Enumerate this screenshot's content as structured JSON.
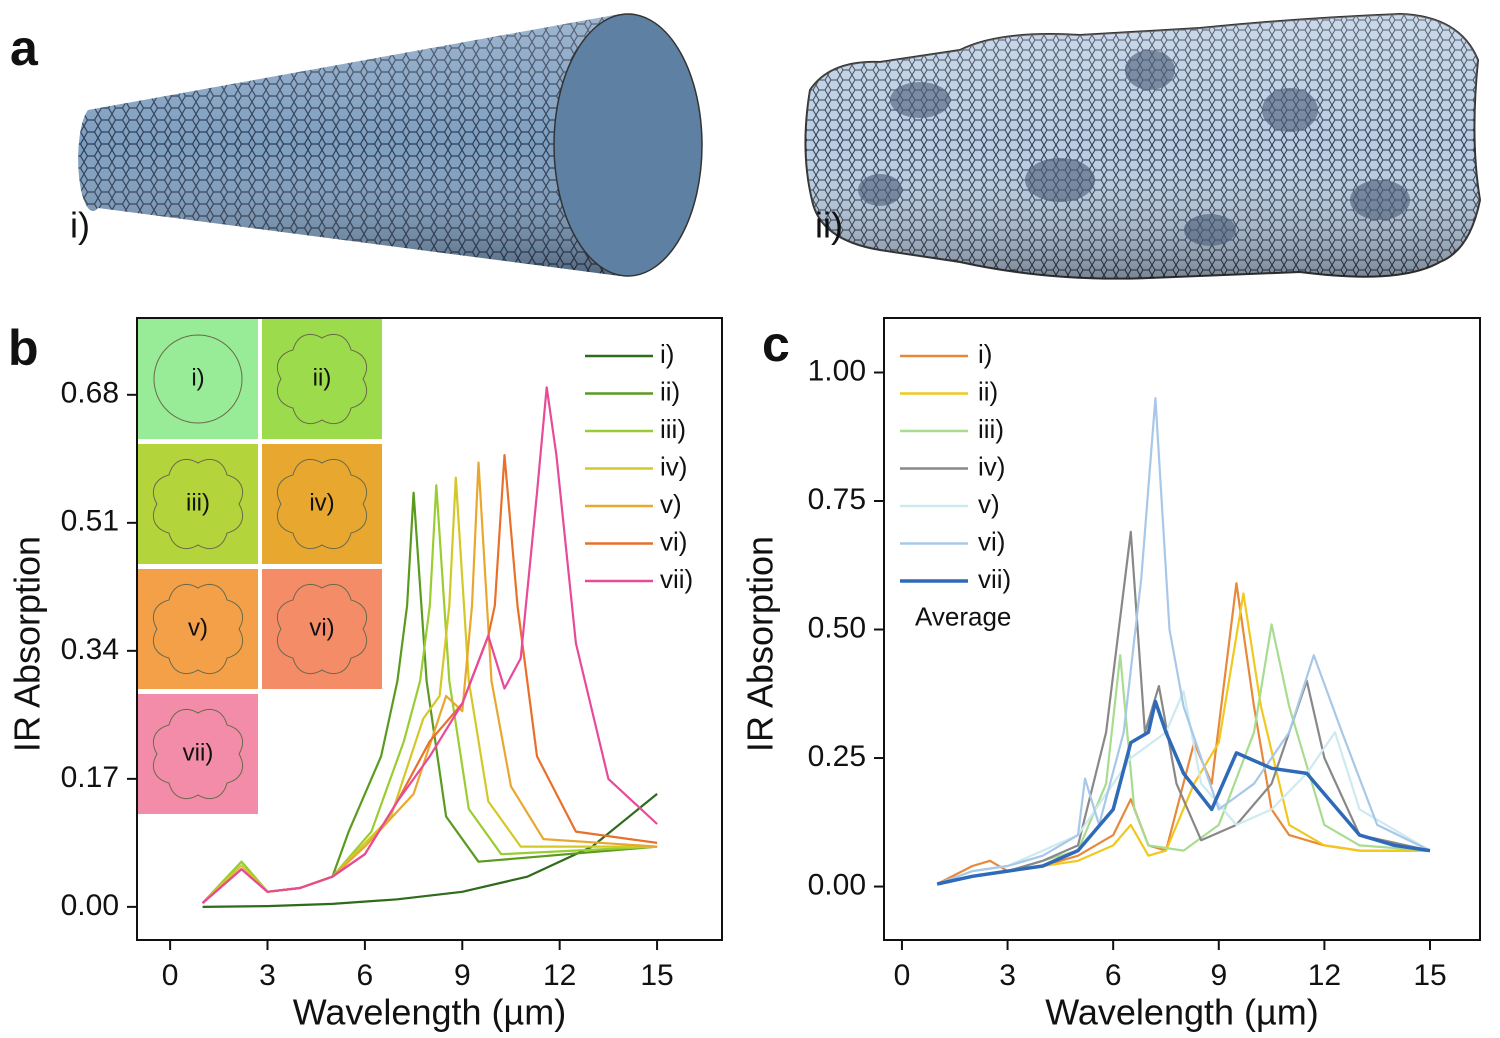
{
  "figure_a": {
    "panel_label": "a",
    "labels": [
      "i)",
      "ii)"
    ]
  },
  "chart_data": [
    {
      "type": "line",
      "panel_label": "b",
      "x_label": "Wavelength (µm)",
      "y_label": "IR Absorption",
      "xlim": [
        -1.02,
        17.0
      ],
      "xticks": [
        0,
        3,
        6,
        9,
        12,
        15
      ],
      "ylim": [
        -0.044,
        0.782
      ],
      "yticks": [
        {
          "value": 0,
          "label": "0.00"
        },
        0.17,
        0.34,
        0.51,
        0.68
      ],
      "insets": [
        "i)",
        "ii)",
        "iii)",
        "iv)",
        "v)",
        "vi)",
        "vii)"
      ],
      "series": [
        {
          "name": "i)",
          "color": "#2e6b1a",
          "x": [
            1,
            3,
            5,
            7,
            9,
            11,
            13,
            15
          ],
          "values": [
            0.0,
            0.001,
            0.004,
            0.01,
            0.02,
            0.04,
            0.08,
            0.15
          ]
        },
        {
          "name": "ii)",
          "color": "#5a9a1e",
          "x": [
            1,
            2.2,
            3,
            4,
            5,
            5.5,
            6.5,
            7,
            7.3,
            7.5,
            7.9,
            8.5,
            9.5,
            15
          ],
          "values": [
            0.005,
            0.06,
            0.02,
            0.025,
            0.04,
            0.1,
            0.2,
            0.3,
            0.4,
            0.55,
            0.3,
            0.12,
            0.06,
            0.08
          ]
        },
        {
          "name": "iii)",
          "color": "#9acd32",
          "x": [
            1,
            2.2,
            3,
            4,
            5,
            6.2,
            7.2,
            7.7,
            8,
            8.2,
            8.6,
            9.2,
            10.2,
            15
          ],
          "values": [
            0.005,
            0.06,
            0.02,
            0.025,
            0.04,
            0.1,
            0.22,
            0.3,
            0.4,
            0.56,
            0.3,
            0.13,
            0.07,
            0.08
          ]
        },
        {
          "name": "iv)",
          "color": "#d4c828",
          "x": [
            1,
            2.2,
            3,
            4,
            5,
            6.8,
            7.8,
            8.3,
            8.6,
            8.8,
            9.2,
            9.8,
            10.8,
            15
          ],
          "values": [
            0.005,
            0.055,
            0.02,
            0.025,
            0.04,
            0.12,
            0.25,
            0.28,
            0.4,
            0.57,
            0.3,
            0.14,
            0.08,
            0.08
          ]
        },
        {
          "name": "v)",
          "color": "#e8a830",
          "x": [
            1,
            2.2,
            3,
            4,
            5,
            6,
            7.5,
            8.5,
            9,
            9.3,
            9.5,
            9.9,
            10.5,
            11.5,
            15
          ],
          "values": [
            0.005,
            0.05,
            0.02,
            0.025,
            0.04,
            0.08,
            0.15,
            0.28,
            0.26,
            0.4,
            0.59,
            0.3,
            0.16,
            0.09,
            0.08
          ]
        },
        {
          "name": "vi)",
          "color": "#e8702a",
          "x": [
            1,
            2.2,
            3,
            4,
            5,
            6,
            7,
            8,
            9,
            9.8,
            10,
            10.3,
            10.7,
            11.3,
            12.5,
            15
          ],
          "values": [
            0.005,
            0.05,
            0.02,
            0.025,
            0.04,
            0.07,
            0.14,
            0.22,
            0.27,
            0.36,
            0.4,
            0.6,
            0.4,
            0.2,
            0.1,
            0.085
          ]
        },
        {
          "name": "vii)",
          "color": "#e84a9a",
          "x": [
            1,
            2.2,
            3,
            4,
            5,
            6,
            7,
            8,
            9,
            9.8,
            10.3,
            10.8,
            11.3,
            11.6,
            11.9,
            12.5,
            13.5,
            15
          ],
          "values": [
            0.005,
            0.05,
            0.02,
            0.025,
            0.04,
            0.07,
            0.14,
            0.2,
            0.27,
            0.36,
            0.29,
            0.33,
            0.55,
            0.69,
            0.6,
            0.35,
            0.17,
            0.11
          ]
        }
      ]
    },
    {
      "type": "line",
      "panel_label": "c",
      "x_label": "Wavelength (µm)",
      "y_label": "IR Absorption",
      "xlim": [
        -0.51,
        16.42
      ],
      "xticks": [
        0,
        3,
        6,
        9,
        12,
        15
      ],
      "ylim": [
        -0.104,
        1.106
      ],
      "yticks": [
        {
          "value": 0,
          "label": "0.00"
        },
        0.25,
        {
          "value": 0.5,
          "label": "0.50"
        },
        0.75,
        {
          "value": 1,
          "label": "1.00"
        }
      ],
      "legend_note": "Average",
      "series": [
        {
          "name": "i)",
          "color": "#e8883a",
          "x": [
            1,
            2,
            2.5,
            3,
            4,
            5,
            6,
            6.5,
            7,
            7.5,
            8.3,
            8.8,
            9.5,
            10,
            10.5,
            11,
            12,
            13,
            15
          ],
          "values": [
            0.005,
            0.04,
            0.05,
            0.03,
            0.04,
            0.06,
            0.1,
            0.17,
            0.08,
            0.07,
            0.28,
            0.2,
            0.59,
            0.35,
            0.15,
            0.1,
            0.08,
            0.07,
            0.07
          ]
        },
        {
          "name": "ii)",
          "color": "#f0c820",
          "x": [
            1,
            2,
            3,
            4,
            5,
            6,
            6.5,
            7,
            7.5,
            8.3,
            9,
            9.7,
            10.2,
            11,
            12,
            13,
            15
          ],
          "values": [
            0.005,
            0.02,
            0.03,
            0.04,
            0.05,
            0.08,
            0.12,
            0.06,
            0.07,
            0.2,
            0.28,
            0.57,
            0.35,
            0.12,
            0.08,
            0.07,
            0.07
          ]
        },
        {
          "name": "iii)",
          "color": "#a8dc90",
          "x": [
            1,
            2,
            3,
            4,
            5,
            5.8,
            6.2,
            6.6,
            7,
            8,
            9,
            10,
            10.5,
            11,
            12,
            13,
            15
          ],
          "values": [
            0.005,
            0.02,
            0.03,
            0.05,
            0.07,
            0.2,
            0.45,
            0.15,
            0.08,
            0.07,
            0.12,
            0.3,
            0.51,
            0.35,
            0.12,
            0.08,
            0.07
          ]
        },
        {
          "name": "iv)",
          "color": "#888888",
          "x": [
            1,
            2,
            3,
            4,
            5,
            5.8,
            6.5,
            6.9,
            7.3,
            7.8,
            8.5,
            9.5,
            10.5,
            11.5,
            12,
            13,
            15
          ],
          "values": [
            0.005,
            0.02,
            0.03,
            0.05,
            0.08,
            0.3,
            0.69,
            0.3,
            0.39,
            0.2,
            0.09,
            0.12,
            0.2,
            0.4,
            0.25,
            0.1,
            0.07
          ]
        },
        {
          "name": "v)",
          "color": "#cdeaf0",
          "x": [
            1,
            2,
            3,
            4,
            5,
            5.5,
            6.5,
            7.5,
            8,
            8.5,
            9.5,
            10.5,
            11.5,
            12.3,
            13,
            15
          ],
          "values": [
            0.005,
            0.03,
            0.04,
            0.07,
            0.1,
            0.15,
            0.25,
            0.3,
            0.38,
            0.2,
            0.12,
            0.15,
            0.22,
            0.3,
            0.15,
            0.07
          ]
        },
        {
          "name": "vi)",
          "color": "#a8c8e8",
          "x": [
            1,
            2,
            3,
            4,
            5,
            5.2,
            5.6,
            6.3,
            6.8,
            7.2,
            7.6,
            8,
            9,
            10,
            11,
            11.7,
            12.5,
            13.5,
            15
          ],
          "values": [
            0.005,
            0.03,
            0.04,
            0.06,
            0.1,
            0.21,
            0.12,
            0.3,
            0.6,
            0.95,
            0.5,
            0.35,
            0.15,
            0.2,
            0.3,
            0.45,
            0.3,
            0.12,
            0.07
          ]
        },
        {
          "name": "vii)",
          "color": "#2e6ab8",
          "width": 3.5,
          "x": [
            1,
            2,
            3,
            4,
            5,
            6,
            6.5,
            7,
            7.2,
            7.5,
            8,
            8.8,
            9.5,
            10.5,
            11.5,
            12,
            13,
            14,
            15
          ],
          "values": [
            0.005,
            0.02,
            0.03,
            0.04,
            0.07,
            0.15,
            0.28,
            0.3,
            0.36,
            0.3,
            0.22,
            0.15,
            0.26,
            0.23,
            0.22,
            0.18,
            0.1,
            0.08,
            0.07
          ]
        }
      ]
    }
  ]
}
